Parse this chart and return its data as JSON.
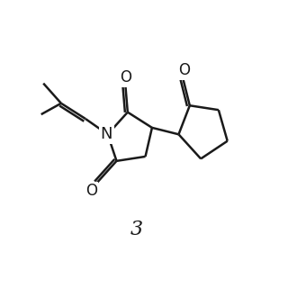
{
  "bg_color": "#ffffff",
  "line_color": "#1a1a1a",
  "line_width": 1.8,
  "label": "3",
  "label_fontsize": 16,
  "figsize": [
    3.2,
    3.2
  ],
  "dpi": 100,
  "xlim": [
    0,
    10
  ],
  "ylim": [
    0,
    10
  ]
}
